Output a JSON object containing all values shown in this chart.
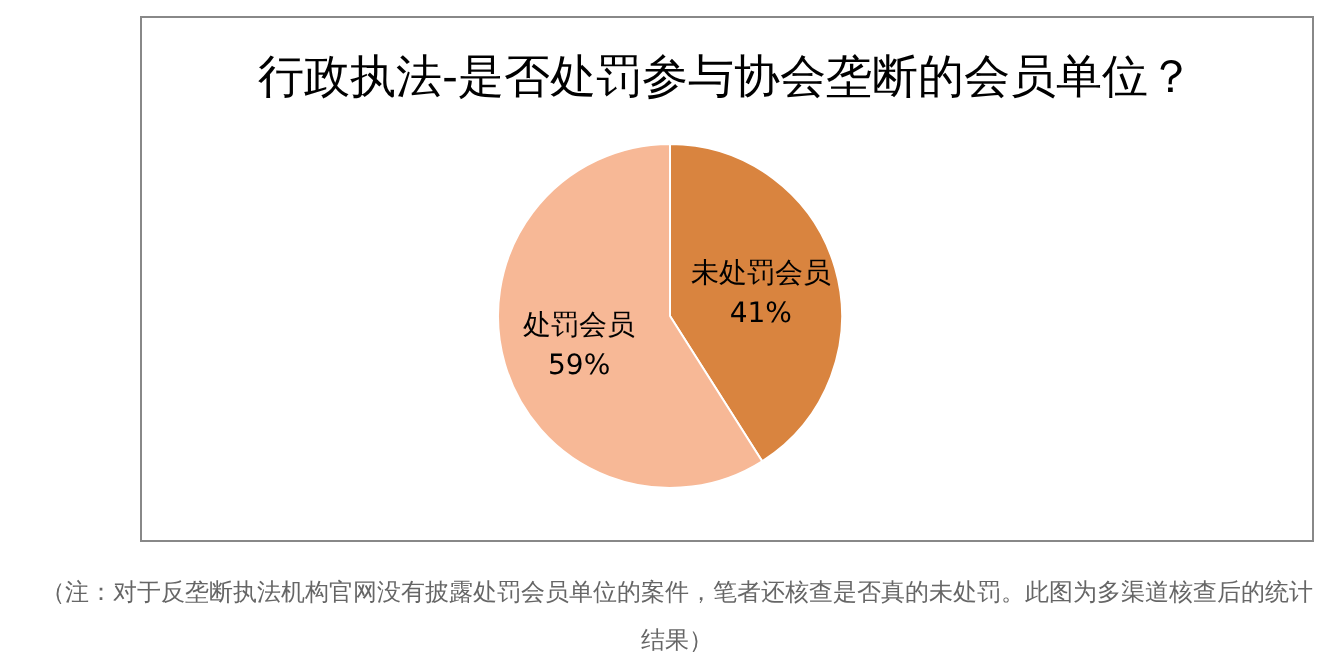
{
  "chart_data": {
    "type": "pie",
    "title": "行政执法-是否处罚参与协会垄断的会员单位？",
    "categories": [
      "未处罚会员",
      "处罚会员"
    ],
    "values": [
      41,
      59
    ],
    "colors": [
      "#d9843f",
      "#f7b896"
    ],
    "value_labels": [
      "41%",
      "59%"
    ],
    "annotations": [
      "（注：对于反垄断执法机构官网没有披露处罚会员单位的案件，笔者还核查是否真的未处罚。此图为多渠道核查后的统计结果）"
    ]
  }
}
